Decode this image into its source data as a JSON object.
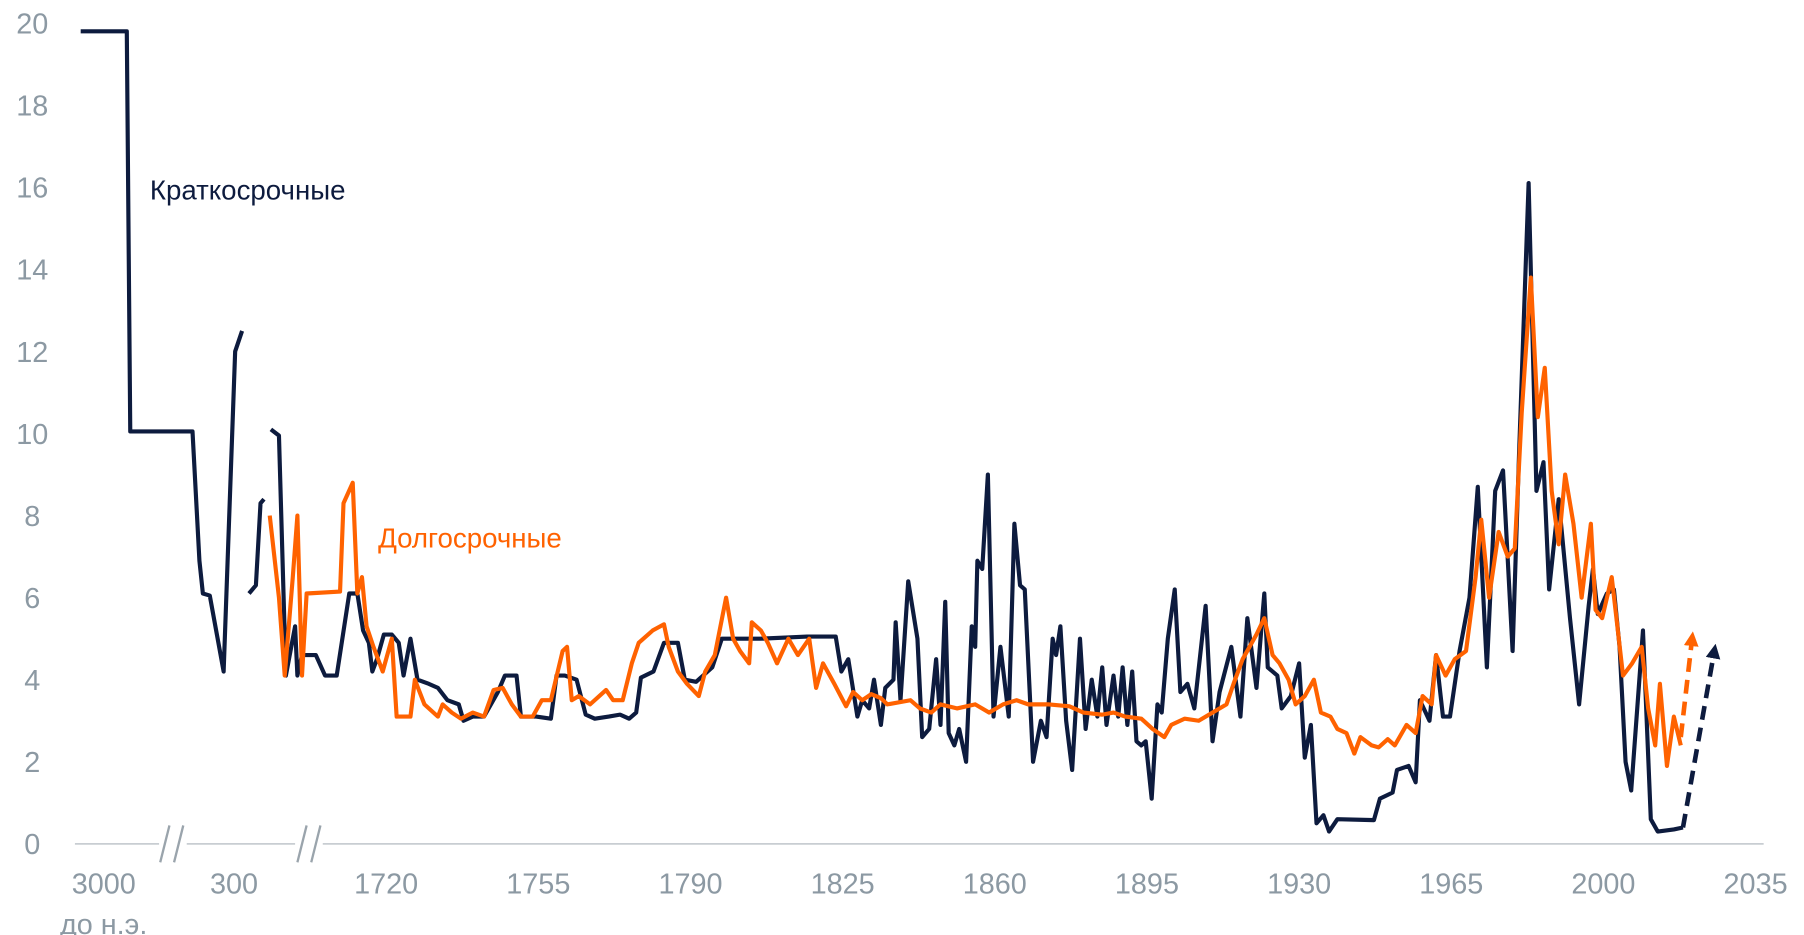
{
  "chart_data": {
    "type": "line",
    "xticks": [
      {
        "value": -3000,
        "label": "3000"
      },
      300,
      1720,
      1755,
      1790,
      1825,
      1860,
      1895,
      1930,
      1965,
      2000,
      2035
    ],
    "xtick_note": "до н.э.",
    "ylim": [
      0,
      20
    ],
    "yticks": [
      0,
      2,
      4,
      6,
      8,
      10,
      12,
      14,
      16,
      18,
      20
    ],
    "grid": false,
    "series": [
      {
        "name": "Краткосрочные",
        "color": "#0d1b3e",
        "x": [
          -3584,
          -2416,
          -2328,
          -752,
          -576,
          -489,
          -314,
          37,
          311,
          375,
          null,
          440,
          504,
          547,
          580,
          null,
          644,
          720,
          784,
          870,
          892,
          935,
          1064,
          1150,
          1258,
          1376,
          1451,
          1505,
          1559,
          1591,
          1634,
          1699,
          1721.3,
          1722.9,
          1724.0,
          1725.6,
          1727.2,
          1729.8,
          1731.9,
          1734.1,
          1736.7,
          1737.8,
          1739.9,
          1742.5,
          1745.7,
          1747.3,
          1750.0,
          1751.0,
          1754.5,
          1757.9,
          1759.2,
          1761.1,
          1763.8,
          1765.9,
          1768.0,
          1771.2,
          1773.8,
          1775.9,
          1777.5,
          1778.6,
          1781.5,
          1783.9,
          1787.1,
          1788.7,
          1791.3,
          1795.0,
          1797.2,
          1806.2,
          1816.8,
          1823.4,
          1824.7,
          1826.3,
          1828.4,
          1829.5,
          1831.1,
          1832.2,
          1833.8,
          1834.8,
          1836.7,
          1837.2,
          1838.3,
          1840.1,
          1842.2,
          1843.3,
          1844.9,
          1846.5,
          1847.5,
          1848.6,
          1849.4,
          1850.7,
          1851.8,
          1853.4,
          1854.7,
          1855.5,
          1856.0,
          1857.1,
          1858.4,
          1859.7,
          1861.3,
          1863.2,
          1864.5,
          1865.8,
          1866.9,
          1868.8,
          1870.6,
          1871.9,
          1873.3,
          1874.1,
          1875.1,
          1876.4,
          1877.8,
          1879.6,
          1880.9,
          1882.3,
          1883.6,
          1884.7,
          1885.7,
          1887.3,
          1888.4,
          1889.4,
          1890.5,
          1891.6,
          1892.6,
          1893.7,
          1894.7,
          1896.1,
          1897.4,
          1898.4,
          1899.8,
          1901.4,
          1902.7,
          1904.3,
          1905.9,
          1908.5,
          1910.1,
          1911.7,
          1914.4,
          1916.5,
          1918.1,
          1920.2,
          1922.0,
          1922.8,
          1925.0,
          1926.0,
          1928.1,
          1930.0,
          1931.3,
          1932.7,
          1934.0,
          1935.6,
          1936.9,
          1938.8,
          1947.2,
          1948.6,
          1951.5,
          1952.5,
          1955.2,
          1956.8,
          1957.8,
          1960.0,
          1961.5,
          1963.1,
          1964.7,
          1966.9,
          1969.2,
          1971.1,
          1973.2,
          1975.1,
          1976.9,
          1979.1,
          1980.6,
          1982.8,
          1984.6,
          1986.2,
          1987.5,
          1989.7,
          1992.3,
          1994.4,
          1996.6,
          1997.6,
          1998.7,
          2000.8,
          2002.4,
          2003.7,
          2005.1,
          2006.4,
          2009.1,
          2010.9,
          2012.5,
          2016.2,
          2018.3
        ],
        "values": [
          19.8,
          19.8,
          10.05,
          10.05,
          6.9,
          6.1,
          6.05,
          4.2,
          12,
          12.5,
          null,
          6.1,
          6.3,
          8.3,
          8.4,
          null,
          10.1,
          9.95,
          4.1,
          5.3,
          4.1,
          4.6,
          4.6,
          4.1,
          4.1,
          6.1,
          6.1,
          5.2,
          4.9,
          4.2,
          4.5,
          5.1,
          5.1,
          4.9,
          4.1,
          5.0,
          4.0,
          3.9,
          3.8,
          3.5,
          3.4,
          3.0,
          3.1,
          3.1,
          3.7,
          4.1,
          4.1,
          3.1,
          3.1,
          3.05,
          4.1,
          4.1,
          4.0,
          3.15,
          3.05,
          3.1,
          3.15,
          3.05,
          3.2,
          4.05,
          4.2,
          4.9,
          4.9,
          4.0,
          3.95,
          4.3,
          5.0,
          5.0,
          5.05,
          5.05,
          4.2,
          4.5,
          3.1,
          3.5,
          3.3,
          4.0,
          2.9,
          3.8,
          4.0,
          5.4,
          3.5,
          6.4,
          5.0,
          2.6,
          2.8,
          4.5,
          2.9,
          5.9,
          2.7,
          2.4,
          2.8,
          2.0,
          5.3,
          4.8,
          6.9,
          6.7,
          9.0,
          3.1,
          4.8,
          3.1,
          7.8,
          6.3,
          6.2,
          2.0,
          3.0,
          2.6,
          5.0,
          4.6,
          5.3,
          3.0,
          1.8,
          5.0,
          2.8,
          4.0,
          3.1,
          4.3,
          2.9,
          4.1,
          3.1,
          4.3,
          2.9,
          4.2,
          2.5,
          2.4,
          2.5,
          1.1,
          3.4,
          3.2,
          5.0,
          6.2,
          3.7,
          3.9,
          3.3,
          5.8,
          2.5,
          3.7,
          4.8,
          3.1,
          5.5,
          3.8,
          6.1,
          4.3,
          4.1,
          3.3,
          3.6,
          4.4,
          2.1,
          2.9,
          0.5,
          0.7,
          0.3,
          0.6,
          0.58,
          1.1,
          1.25,
          1.8,
          1.9,
          1.5,
          3.5,
          3.0,
          4.6,
          3.1,
          3.1,
          4.7,
          6.0,
          8.7,
          4.3,
          8.6,
          9.1,
          4.7,
          9.5,
          16.1,
          8.6,
          9.3,
          6.2,
          8.4,
          5.5,
          3.4,
          5.8,
          6.7,
          5.6,
          6.1,
          6.2,
          4.8,
          2.0,
          1.3,
          5.2,
          0.6,
          0.3,
          0.35,
          0.4
        ],
        "forecast_x": [
          2018.3,
          2025.5
        ],
        "forecast_values": [
          0.4,
          4.7
        ]
      },
      {
        "name": "Долгосрочные",
        "color": "#ff6200",
        "x": [
          633.6,
          719.6,
          773.4,
          848.8,
          891.8,
          934.8,
          977.9,
          1289.9,
          1322.2,
          1408.3,
          1451.3,
          1494.4,
          1537.4,
          1602.0,
          1688.0,
          1721.3,
          1722.4,
          1725.6,
          1726.6,
          1728.8,
          1731.9,
          1733.0,
          1735.1,
          1737.2,
          1739.9,
          1742.5,
          1744.7,
          1746.8,
          1748.9,
          1751.0,
          1753.7,
          1755.8,
          1757.9,
          1760.6,
          1761.6,
          1762.7,
          1764.3,
          1766.9,
          1770.6,
          1772.2,
          1774.4,
          1776.5,
          1778.1,
          1781.3,
          1783.9,
          1785.0,
          1787.1,
          1789.2,
          1791.9,
          1793.4,
          1795.6,
          1798.2,
          1799.8,
          1801.4,
          1803.5,
          1804.1,
          1806.2,
          1807.8,
          1809.9,
          1812.5,
          1814.7,
          1817.3,
          1818.9,
          1820.5,
          1823.1,
          1825.8,
          1827.4,
          1829.5,
          1831.6,
          1833.8,
          1835.3,
          1840.6,
          1842.8,
          1845.4,
          1847.5,
          1851.3,
          1855.5,
          1858.7,
          1861.9,
          1865.0,
          1867.7,
          1872.5,
          1877.2,
          1880.4,
          1884.7,
          1887.3,
          1890.0,
          1893.7,
          1896.3,
          1899.0,
          1900.6,
          1903.7,
          1906.9,
          1910.1,
          1913.3,
          1914.9,
          1917.0,
          1920.2,
          1922.0,
          1923.9,
          1925.5,
          1927.6,
          1929.2,
          1931.3,
          1933.4,
          1935.0,
          1937.2,
          1938.8,
          1940.9,
          1942.7,
          1944.1,
          1946.7,
          1948.3,
          1950.4,
          1952.0,
          1954.7,
          1956.8,
          1958.4,
          1960.5,
          1961.5,
          1963.7,
          1965.8,
          1968.4,
          1970.6,
          1971.9,
          1973.7,
          1975.9,
          1978.0,
          1979.6,
          1981.2,
          1983.3,
          1984.9,
          1986.5,
          1988.1,
          1989.7,
          1991.2,
          1993.1,
          1995.0,
          1997.1,
          1998.2,
          1999.7,
          2001.9,
          2004.5,
          2006.6,
          2008.8,
          2010.3,
          2011.9,
          2013.0,
          2014.6,
          2016.2,
          2017.8
        ],
        "values": [
          8.0,
          6.0,
          4.1,
          6.5,
          8.0,
          4.1,
          6.1,
          6.15,
          8.3,
          8.8,
          6.1,
          6.5,
          5.3,
          4.8,
          4.2,
          5.0,
          3.1,
          3.1,
          4.0,
          3.4,
          3.1,
          3.4,
          3.2,
          3.05,
          3.2,
          3.1,
          3.75,
          3.8,
          3.4,
          3.1,
          3.1,
          3.5,
          3.5,
          4.7,
          4.8,
          3.5,
          3.6,
          3.4,
          3.75,
          3.5,
          3.5,
          4.4,
          4.9,
          5.2,
          5.35,
          4.8,
          4.2,
          3.9,
          3.6,
          4.2,
          4.6,
          6.0,
          5.0,
          4.7,
          4.4,
          5.4,
          5.2,
          4.9,
          4.4,
          5.0,
          4.6,
          5.0,
          3.8,
          4.4,
          3.9,
          3.35,
          3.7,
          3.5,
          3.65,
          3.55,
          3.4,
          3.5,
          3.3,
          3.2,
          3.4,
          3.3,
          3.4,
          3.2,
          3.4,
          3.5,
          3.4,
          3.4,
          3.35,
          3.2,
          3.15,
          3.2,
          3.1,
          3.05,
          2.8,
          2.6,
          2.9,
          3.05,
          3.0,
          3.2,
          3.4,
          3.9,
          4.5,
          5.1,
          5.5,
          4.6,
          4.4,
          4.0,
          3.4,
          3.6,
          4.0,
          3.2,
          3.1,
          2.8,
          2.7,
          2.2,
          2.6,
          2.4,
          2.35,
          2.55,
          2.4,
          2.9,
          2.7,
          3.6,
          3.4,
          4.6,
          4.1,
          4.5,
          4.7,
          6.5,
          7.9,
          6.0,
          7.6,
          7.0,
          7.2,
          10.5,
          13.8,
          10.4,
          11.6,
          8.6,
          7.3,
          9.0,
          7.8,
          6.0,
          7.8,
          5.7,
          5.5,
          6.5,
          4.1,
          4.4,
          4.8,
          3.3,
          2.4,
          3.9,
          1.9,
          3.1,
          2.4
        ],
        "forecast_x": [
          2017.8,
          2020.4
        ],
        "forecast_values": [
          2.6,
          5.0
        ]
      }
    ]
  }
}
